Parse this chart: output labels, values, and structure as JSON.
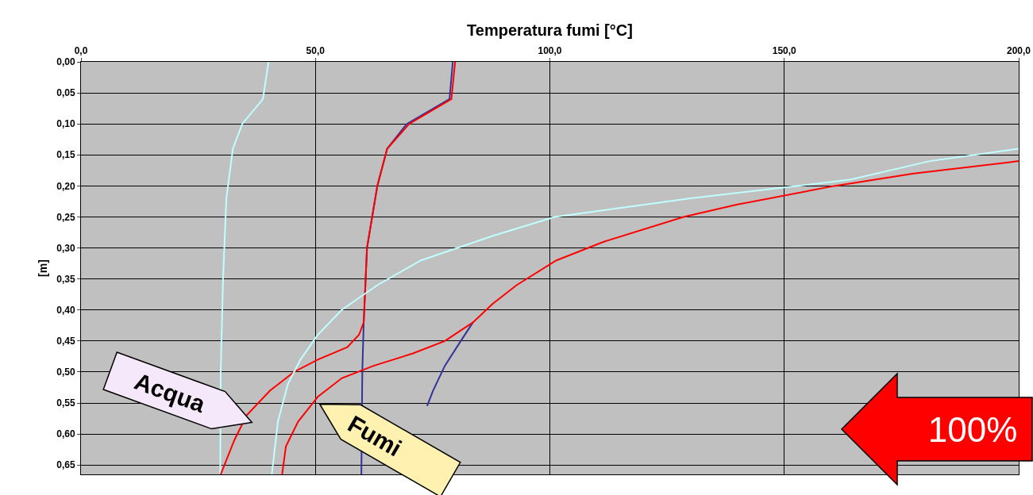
{
  "chart_data": {
    "type": "line",
    "xlabel": "Temperatura fumi [°C]",
    "ylabel": "[m]",
    "xlim": [
      0,
      200
    ],
    "xticks": [
      {
        "value": 0,
        "label": "0,0"
      },
      {
        "value": 50,
        "label": "50,0"
      },
      {
        "value": 100,
        "label": "100,0"
      },
      {
        "value": 150,
        "label": "150,0"
      },
      {
        "value": 200,
        "label": "200,0"
      }
    ],
    "ylim": [
      0.665,
      0
    ],
    "yticks": [
      {
        "value": 0,
        "label": "0,00"
      },
      {
        "value": 0.05,
        "label": "0,05"
      },
      {
        "value": 0.1,
        "label": "0,10"
      },
      {
        "value": 0.15,
        "label": "0,15"
      },
      {
        "value": 0.2,
        "label": "0,20"
      },
      {
        "value": 0.25,
        "label": "0,25"
      },
      {
        "value": 0.3,
        "label": "0,30"
      },
      {
        "value": 0.35,
        "label": "0,35"
      },
      {
        "value": 0.4,
        "label": "0,40"
      },
      {
        "value": 0.45,
        "label": "0,45"
      },
      {
        "value": 0.5,
        "label": "0,50"
      },
      {
        "value": 0.55,
        "label": "0,55"
      },
      {
        "value": 0.6,
        "label": "0,60"
      },
      {
        "value": 0.65,
        "label": "0,65"
      }
    ],
    "grid": true,
    "marker": "none",
    "line_style": "solid",
    "series": [
      {
        "color": "#c0ffff",
        "x": [
          40.0,
          38.8,
          34.4,
          32.4,
          31.0,
          30.3,
          29.8,
          29.7
        ],
        "values": [
          0,
          0.06,
          0.1,
          0.14,
          0.22,
          0.35,
          0.5,
          0.665
        ]
      },
      {
        "color": "#333399",
        "x": [
          79.3,
          78.6,
          69.5,
          65.3,
          63.2,
          61.0,
          60.3,
          60.0,
          59.8
        ],
        "values": [
          0,
          0.06,
          0.1,
          0.14,
          0.2,
          0.3,
          0.42,
          0.5,
          0.665
        ]
      },
      {
        "color": "#ff0000",
        "x": [
          79.8,
          79.0,
          70.0,
          65.3,
          63.2,
          61.0,
          60.3,
          59.3,
          56.8,
          50.5,
          45.4,
          40.3,
          35.3,
          32.7,
          29.8
        ],
        "values": [
          0,
          0.06,
          0.1,
          0.14,
          0.2,
          0.3,
          0.42,
          0.44,
          0.46,
          0.48,
          0.5,
          0.53,
          0.57,
          0.61,
          0.665
        ]
      },
      {
        "color": "#c0ffff",
        "x": [
          200,
          181,
          164,
          130,
          101,
          88,
          72.5,
          63.2,
          55.6,
          50.5,
          46.8,
          44.1,
          42.0,
          40.7
        ],
        "values": [
          0.14,
          0.16,
          0.19,
          0.22,
          0.25,
          0.28,
          0.32,
          0.36,
          0.4,
          0.44,
          0.48,
          0.52,
          0.58,
          0.665
        ]
      },
      {
        "color": "#333399",
        "x": [
          83.6,
          81.0,
          77.6,
          75.1,
          73.8
        ],
        "values": [
          0.42,
          0.45,
          0.49,
          0.53,
          0.555
        ]
      },
      {
        "color": "#ff0000",
        "x": [
          200,
          177.6,
          160.7,
          140,
          128.5,
          111.5,
          101.4,
          92.9,
          87.8,
          83.6,
          77.6,
          70.8,
          62.4,
          55.6,
          50.5,
          46.3,
          43.7,
          42.9
        ],
        "values": [
          0.16,
          0.18,
          0.2,
          0.23,
          0.25,
          0.29,
          0.32,
          0.36,
          0.39,
          0.42,
          0.45,
          0.47,
          0.49,
          0.51,
          0.54,
          0.58,
          0.62,
          0.665
        ]
      }
    ],
    "annotations": [
      "Acqua",
      "Fumi",
      "100%"
    ]
  }
}
